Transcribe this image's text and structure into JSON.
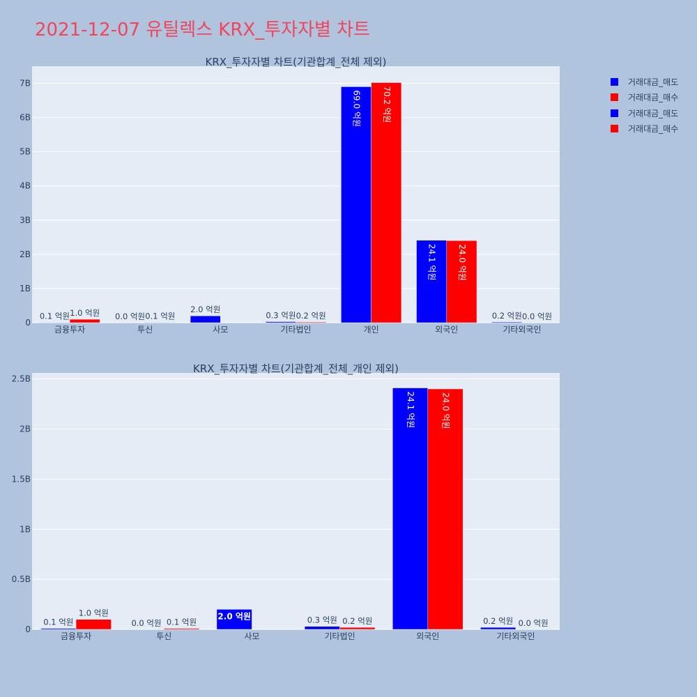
{
  "page_title": "2021-12-07 유틸렉스 KRX_투자자별 차트",
  "legend": [
    {
      "label": "거래대금_매도",
      "color": "#0000ff"
    },
    {
      "label": "거래대금_매수",
      "color": "#ff0000"
    },
    {
      "label": "거래대금_매도",
      "color": "#0000ff"
    },
    {
      "label": "거래대금_매수",
      "color": "#ff0000"
    }
  ],
  "chart_data": [
    {
      "type": "bar",
      "title": "KRX_투자자별 차트(기관합계_전체 제외)",
      "categories": [
        "금융투자",
        "투신",
        "사모",
        "기타법인",
        "개인",
        "외국인",
        "기타외국인"
      ],
      "ylim": [
        0,
        7500000000
      ],
      "yticks": [
        0,
        1000000000,
        2000000000,
        3000000000,
        4000000000,
        5000000000,
        6000000000,
        7000000000
      ],
      "ytick_labels": [
        "0",
        "1B",
        "2B",
        "3B",
        "4B",
        "5B",
        "6B",
        "7B"
      ],
      "grid": true,
      "series": [
        {
          "name": "거래대금_매도",
          "color": "#0000ff",
          "values": [
            10000000,
            0,
            200000000,
            30000000,
            6900000000,
            2410000000,
            20000000
          ],
          "labels": [
            "0.1 억원",
            "0.0 억원",
            "2.0 억원",
            "0.3 억원",
            "69.0 억원",
            "24.1 억원",
            "0.2 억원"
          ]
        },
        {
          "name": "거래대금_매수",
          "color": "#ff0000",
          "values": [
            100000000,
            10000000,
            0,
            20000000,
            7020000000,
            2400000000,
            0
          ],
          "labels": [
            "1.0 억원",
            "0.1 억원",
            "",
            "0.2 억원",
            "70.2 억원",
            "24.0 억원",
            "0.0 억원"
          ]
        }
      ]
    },
    {
      "type": "bar",
      "title": "KRX_투자자별 차트(기관합계_전체_개인 제외)",
      "categories": [
        "금융투자",
        "투신",
        "사모",
        "기타법인",
        "외국인",
        "기타외국인"
      ],
      "ylim": [
        0,
        2560000000
      ],
      "yticks": [
        0,
        500000000,
        1000000000,
        1500000000,
        2000000000,
        2500000000
      ],
      "ytick_labels": [
        "0",
        "0.5B",
        "1B",
        "1.5B",
        "2B",
        "2.5B"
      ],
      "grid": true,
      "series": [
        {
          "name": "거래대금_매도",
          "color": "#0000ff",
          "values": [
            10000000,
            0,
            200000000,
            30000000,
            2410000000,
            20000000
          ],
          "labels": [
            "0.1 억원",
            "0.0 억원",
            "2.0 억원",
            "0.3 억원",
            "24.1 억원",
            "0.2 억원"
          ]
        },
        {
          "name": "거래대금_매수",
          "color": "#ff0000",
          "values": [
            100000000,
            10000000,
            0,
            20000000,
            2400000000,
            0
          ],
          "labels": [
            "1.0 억원",
            "0.1 억원",
            "",
            "0.2 억원",
            "24.0 억원",
            "0.0 억원"
          ]
        }
      ]
    }
  ]
}
